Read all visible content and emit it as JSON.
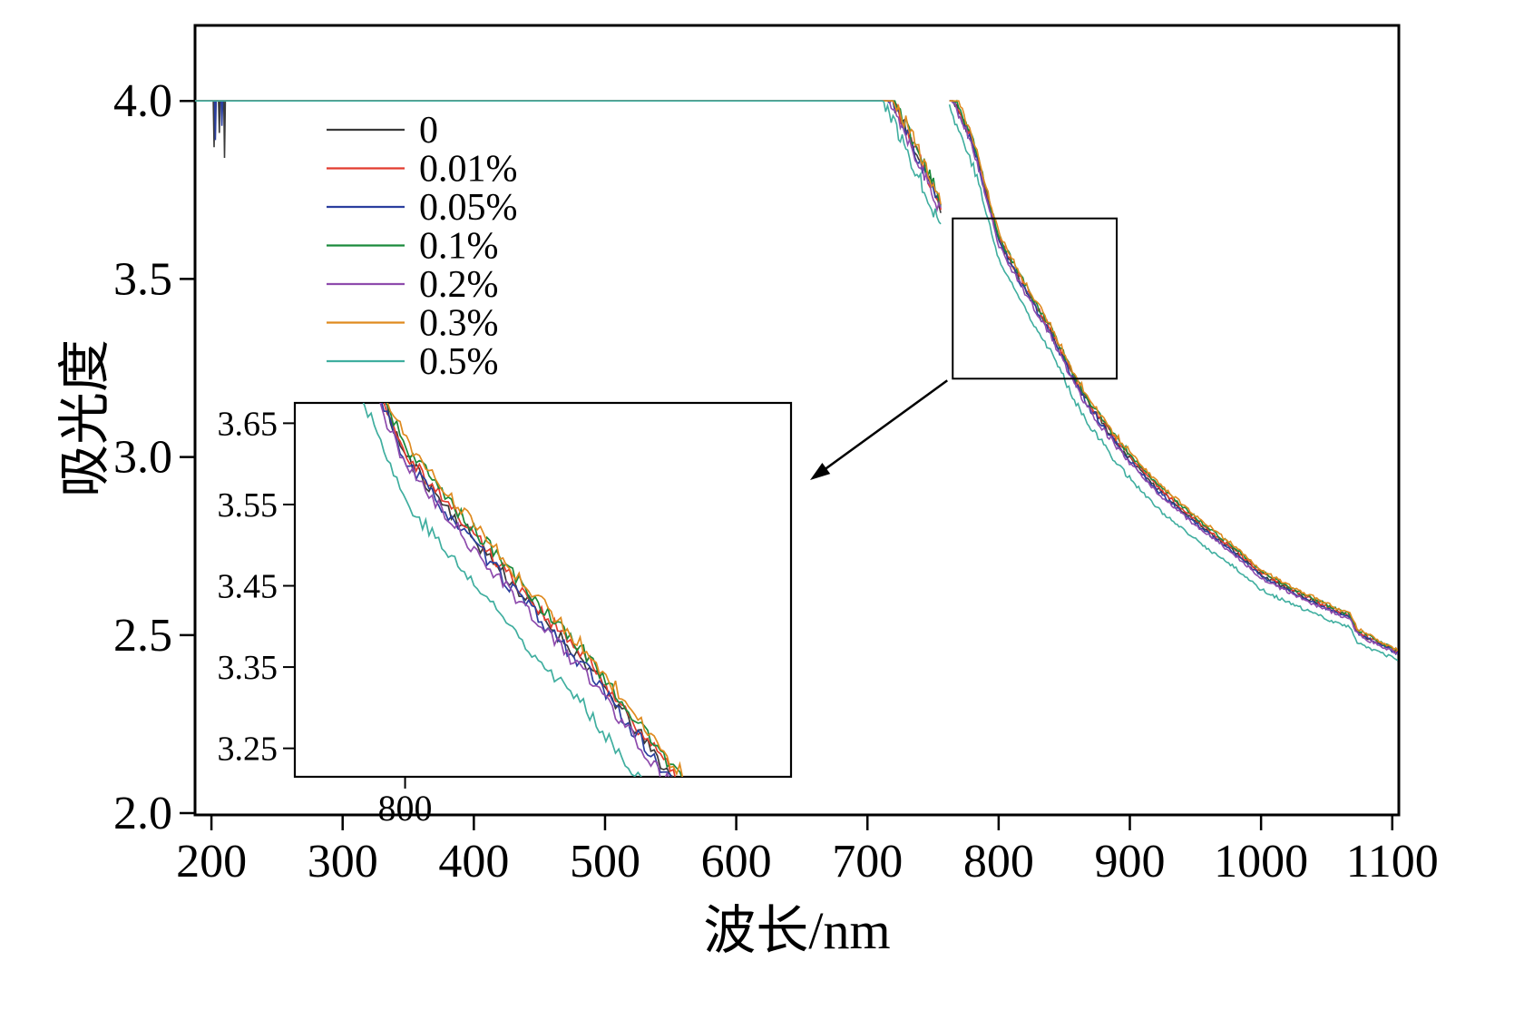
{
  "chart_data": {
    "type": "line",
    "title": "",
    "xlabel": "波长/nm",
    "ylabel": "吸光度",
    "xlim": [
      187.5,
      1105
    ],
    "ylim": [
      1.995,
      4.212
    ],
    "xticks": [
      200,
      300,
      400,
      500,
      600,
      700,
      800,
      900,
      1000,
      1100
    ],
    "yticks": [
      2.0,
      2.5,
      3.0,
      3.5,
      4.0
    ],
    "ytick_labels": [
      "2.0",
      "2.5",
      "3.0",
      "3.5",
      "4.0"
    ],
    "grid": false,
    "legend_position": "upper-left-inside",
    "saturation_level": 4.0,
    "gap_nm": [
      756.5,
      762.5
    ],
    "profile": [
      [
        187.5,
        4.06
      ],
      [
        712,
        4.06
      ],
      [
        756.5,
        3.7
      ],
      [
        762.5,
        4.05
      ],
      [
        766,
        4.0
      ],
      [
        771,
        3.96
      ],
      [
        778,
        3.9
      ],
      [
        785,
        3.82
      ],
      [
        792,
        3.72
      ],
      [
        800,
        3.61
      ],
      [
        810,
        3.54
      ],
      [
        820,
        3.475
      ],
      [
        830,
        3.41
      ],
      [
        840,
        3.35
      ],
      [
        850,
        3.275
      ],
      [
        858,
        3.215
      ],
      [
        870,
        3.14
      ],
      [
        880,
        3.09
      ],
      [
        892,
        3.03
      ],
      [
        905,
        2.975
      ],
      [
        920,
        2.915
      ],
      [
        940,
        2.85
      ],
      [
        960,
        2.79
      ],
      [
        980,
        2.735
      ],
      [
        1000,
        2.67
      ],
      [
        1020,
        2.63
      ],
      [
        1040,
        2.595
      ],
      [
        1058,
        2.565
      ],
      [
        1068,
        2.55
      ],
      [
        1073,
        2.51
      ],
      [
        1085,
        2.485
      ],
      [
        1105,
        2.45
      ]
    ],
    "noise_regions": [
      [
        712,
        762,
        0.022
      ],
      [
        762,
        790,
        0.013
      ],
      [
        790,
        900,
        0.009
      ],
      [
        900,
        1105,
        0.005
      ]
    ],
    "series": [
      {
        "name": "0",
        "color": "#3a3a3a",
        "offset": 0.0,
        "seed": 11
      },
      {
        "name": "0.01%",
        "color": "#e23b2e",
        "offset": 0.006,
        "seed": 22
      },
      {
        "name": "0.05%",
        "color": "#2b3f9e",
        "offset": -0.006,
        "seed": 33
      },
      {
        "name": "0.1%",
        "color": "#1a8a3c",
        "offset": 0.012,
        "seed": 44
      },
      {
        "name": "0.2%",
        "color": "#8e4bad",
        "offset": -0.012,
        "seed": 55
      },
      {
        "name": "0.3%",
        "color": "#df8a1f",
        "offset": 0.018,
        "seed": 66
      },
      {
        "name": "0.5%",
        "color": "#3fae9f",
        "offset": -0.055,
        "seed": 77
      }
    ],
    "start_spikes": {
      "0": [
        [
          202,
          0.13
        ],
        [
          206,
          0.09
        ],
        [
          210,
          0.16
        ]
      ],
      "2": [
        [
          203,
          0.11
        ],
        [
          208,
          0.07
        ]
      ]
    },
    "offset_fade": {
      "full_until": 930,
      "end_scale_at_xmax": 0.4
    },
    "inset": {
      "xlim": [
        776,
        884
      ],
      "ylim": [
        3.215,
        3.675
      ],
      "xticks": [
        800
      ],
      "xtick_labels": [
        "800"
      ],
      "yticks": [
        3.65,
        3.55,
        3.45,
        3.35,
        3.25
      ],
      "ytick_labels": [
        "3.65",
        "3.55",
        "3.45",
        "3.35",
        "3.25"
      ]
    },
    "annotations": {
      "zoom_rect": {
        "x0": 765,
        "x1": 890,
        "y0": 3.22,
        "y1": 3.67
      },
      "arrow": {
        "from": "zoom-rect-bottom-left",
        "to": "inset-right-edge"
      }
    }
  }
}
